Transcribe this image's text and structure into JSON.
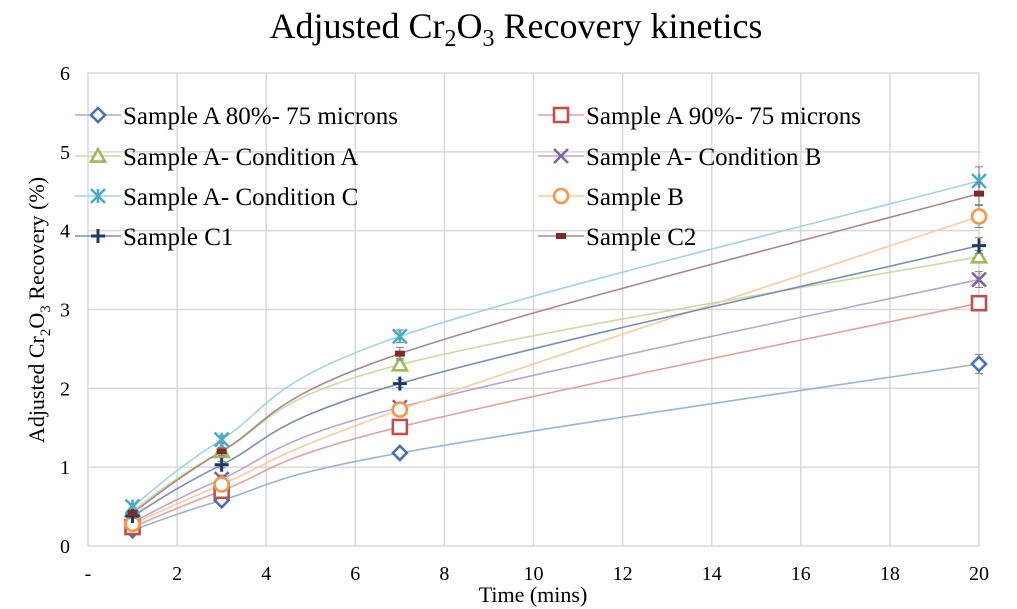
{
  "chart_data": {
    "type": "line",
    "title": "Adjusted Cr2O3 Recovery kinetics",
    "title_parts": {
      "pre": "Adjusted Cr",
      "sub1": "2",
      "mid": "O",
      "sub2": "3",
      "post": " Recovery kinetics"
    },
    "xlabel": "Time (mins)",
    "ylabel": "Adjusted Cr2O3 Recovery (%)",
    "ylabel_parts": {
      "pre": "Adjusted Cr",
      "sub1": "2",
      "mid": "O",
      "sub2": "3",
      "post": " Recovery (%)"
    },
    "xlim": [
      0,
      20
    ],
    "ylim": [
      0,
      6
    ],
    "xticks": [
      0,
      2,
      4,
      6,
      8,
      10,
      12,
      14,
      16,
      18,
      20
    ],
    "xtick_labels": [
      "-",
      "2",
      "4",
      "6",
      "8",
      "10",
      "12",
      "14",
      "16",
      "18",
      "20"
    ],
    "yticks": [
      0,
      1,
      2,
      3,
      4,
      5,
      6
    ],
    "ytick_labels": [
      "0",
      "1",
      "2",
      "3",
      "4",
      "5",
      "6"
    ],
    "grid": true,
    "legend_position": "top-left (inside, two columns)",
    "x": [
      1,
      3,
      7,
      20
    ],
    "series": [
      {
        "name": "Sample A 80%- 75 microns",
        "marker": "diamond",
        "color": "#4a72b0",
        "line_color": "#9bb3d6",
        "values": [
          0.2,
          0.58,
          1.18,
          2.31
        ],
        "error": [
          0.03,
          0.04,
          0.05,
          0.12
        ]
      },
      {
        "name": "Sample A 90%- 75 microns",
        "marker": "square",
        "color": "#c0504d",
        "line_color": "#e0a3a1",
        "values": [
          0.24,
          0.7,
          1.51,
          3.08
        ],
        "error": [
          0.03,
          0.04,
          0.06,
          0.08
        ]
      },
      {
        "name": "Sample A- Condition A",
        "marker": "triangle",
        "color": "#9bbb59",
        "line_color": "#c9dca5",
        "values": [
          0.45,
          1.2,
          2.3,
          3.67
        ],
        "error": [
          0.03,
          0.05,
          0.08,
          0.08
        ]
      },
      {
        "name": "Sample A- Condition B",
        "marker": "x",
        "color": "#8064a2",
        "line_color": "#b8a8cf",
        "values": [
          0.3,
          0.85,
          1.76,
          3.38
        ],
        "error": [
          0.03,
          0.05,
          0.06,
          0.1
        ]
      },
      {
        "name": "Sample A- Condition C",
        "marker": "star",
        "color": "#4bacc6",
        "line_color": "#a3d4e2",
        "values": [
          0.5,
          1.35,
          2.66,
          4.63
        ],
        "error": [
          0.04,
          0.05,
          0.08,
          0.18
        ]
      },
      {
        "name": "Sample B",
        "marker": "circle",
        "color": "#f79646",
        "line_color": "#f8cba3",
        "values": [
          0.28,
          0.78,
          1.73,
          4.18
        ],
        "error": [
          0.03,
          0.04,
          0.05,
          0.14
        ]
      },
      {
        "name": "Sample C1",
        "marker": "plus",
        "color": "#1f3864",
        "line_color": "#7d8fb0",
        "values": [
          0.38,
          1.03,
          2.06,
          3.81
        ],
        "error": [
          0.03,
          0.04,
          0.05,
          0.1
        ]
      },
      {
        "name": "Sample C2",
        "marker": "dash",
        "color": "#7f2a2a",
        "line_color": "#a88a8a",
        "values": [
          0.42,
          1.2,
          2.44,
          4.47
        ],
        "error": [
          0.03,
          0.05,
          0.08,
          0.14
        ]
      }
    ]
  }
}
